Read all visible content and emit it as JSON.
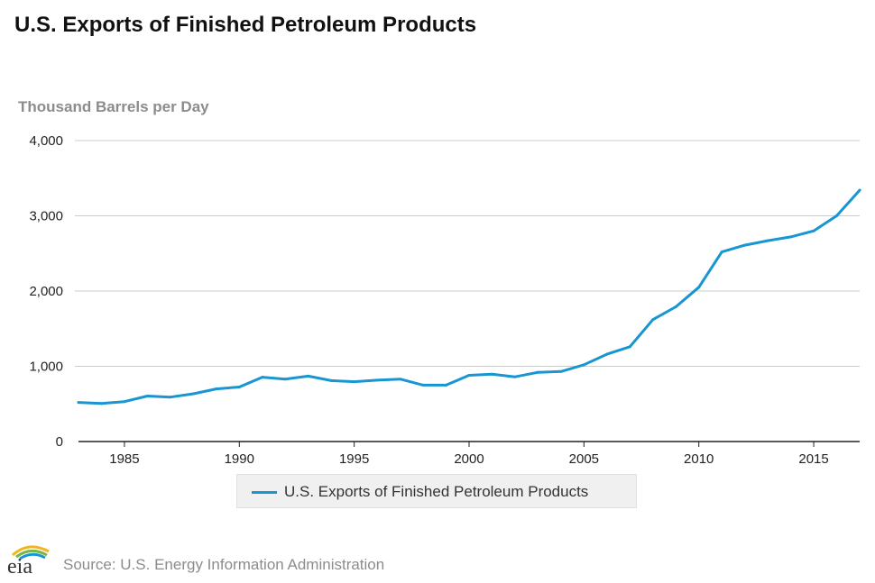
{
  "title": "U.S. Exports of Finished Petroleum Products",
  "logo_text": "eia",
  "source": "Source: U.S. Energy Information Administration",
  "colors": {
    "series": "#1896d2",
    "grid": "#cccccc",
    "axis": "#222222"
  },
  "chart_data": {
    "type": "line",
    "title": "U.S. Exports of Finished Petroleum Products",
    "ylabel": "Thousand Barrels per Day",
    "xlabel": "",
    "xlim": [
      1983,
      2017
    ],
    "ylim": [
      0,
      4000
    ],
    "yticks": [
      0,
      1000,
      2000,
      3000,
      4000
    ],
    "ytick_labels": [
      "0",
      "1,000",
      "2,000",
      "3,000",
      "4,000"
    ],
    "xticks": [
      1985,
      1990,
      1995,
      2000,
      2005,
      2010,
      2015
    ],
    "xtick_labels": [
      "1985",
      "1990",
      "1995",
      "2000",
      "2005",
      "2010",
      "2015"
    ],
    "grid": true,
    "legend": "bottom-center",
    "series": [
      {
        "name": "U.S. Exports of Finished Petroleum Products",
        "x": [
          1983,
          1984,
          1985,
          1986,
          1987,
          1988,
          1989,
          1990,
          1991,
          1992,
          1993,
          1994,
          1995,
          1996,
          1997,
          1998,
          1999,
          2000,
          2001,
          2002,
          2003,
          2004,
          2005,
          2006,
          2007,
          2008,
          2009,
          2010,
          2011,
          2012,
          2013,
          2014,
          2015,
          2016,
          2017
        ],
        "values": [
          520,
          505,
          530,
          605,
          590,
          635,
          700,
          725,
          855,
          830,
          870,
          810,
          795,
          815,
          830,
          750,
          750,
          880,
          895,
          860,
          920,
          930,
          1020,
          1160,
          1260,
          1620,
          1790,
          2050,
          2520,
          2610,
          2670,
          2720,
          2800,
          3000,
          3340
        ]
      }
    ]
  }
}
